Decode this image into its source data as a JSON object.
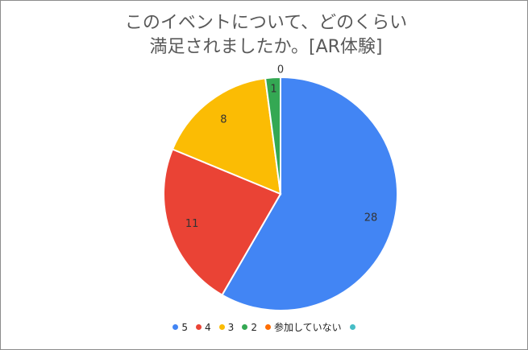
{
  "chart_data": {
    "type": "pie",
    "title_lines": [
      "このイベントについて、どのくらい",
      "満足されましたか。[AR体験]"
    ],
    "start_angle_deg": 0,
    "slices": [
      {
        "label": "5",
        "value": 28,
        "color": "#4285f4"
      },
      {
        "label": "4",
        "value": 11,
        "color": "#ea4335"
      },
      {
        "label": "3",
        "value": 8,
        "color": "#fbbc04"
      },
      {
        "label": "2",
        "value": 1,
        "color": "#34a853"
      },
      {
        "label": "参加していない",
        "value": 0,
        "color": "#ff6d01"
      },
      {
        "label": "",
        "value": 0,
        "color": "#46bdc6"
      }
    ],
    "data_labels": [
      "28",
      "11",
      "8",
      "1",
      "0",
      ""
    ],
    "legend_position": "bottom"
  }
}
